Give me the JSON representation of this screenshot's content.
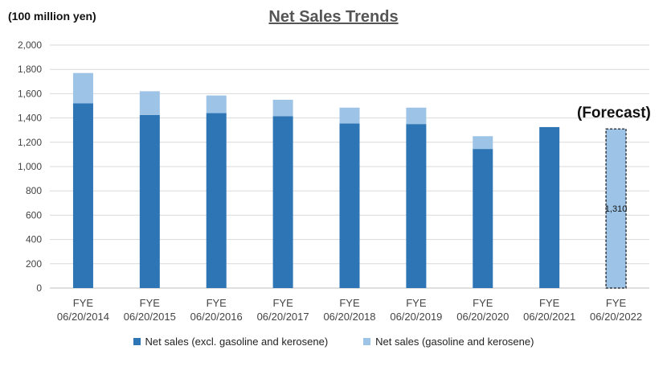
{
  "unit_label": "(100 million yen)",
  "forecast_label": "(Forecast)",
  "colors": {
    "excl": "#2E75B6",
    "gas": "#9DC3E6",
    "forecast": "#9DC3E6",
    "grid": "#d9d9d9",
    "axis_text": "#444444"
  },
  "chart_data": {
    "type": "bar",
    "title": "Net Sales Trends",
    "xlabel": "",
    "ylabel": "(100 million yen)",
    "ylim": [
      0,
      2000
    ],
    "yticks": [
      "0",
      "200",
      "400",
      "600",
      "800",
      "1,000",
      "1,200",
      "1,400",
      "1,600",
      "1,800",
      "2,000"
    ],
    "ytick_values": [
      0,
      200,
      400,
      600,
      800,
      1000,
      1200,
      1400,
      1600,
      1800,
      2000
    ],
    "grid": true,
    "legend_position": "bottom",
    "stacked": true,
    "categories": [
      [
        "FYE",
        "06/20/2014"
      ],
      [
        "FYE",
        "06/20/2015"
      ],
      [
        "FYE",
        "06/20/2016"
      ],
      [
        "FYE",
        "06/20/2017"
      ],
      [
        "FYE",
        "06/20/2018"
      ],
      [
        "FYE",
        "06/20/2019"
      ],
      [
        "FYE",
        "06/20/2020"
      ],
      [
        "FYE",
        "06/20/2021"
      ],
      [
        "FYE",
        "06/20/2022"
      ]
    ],
    "series": [
      {
        "name": "Net sales (excl. gasoline and kerosene)",
        "values": [
          1520,
          1425,
          1440,
          1415,
          1355,
          1350,
          1145,
          1325,
          null
        ]
      },
      {
        "name": "Net sales (gasoline and kerosene)",
        "values": [
          250,
          195,
          145,
          135,
          130,
          135,
          105,
          null,
          null
        ]
      }
    ],
    "forecast": {
      "category_index": 8,
      "value": 1310,
      "label": "1,310"
    }
  }
}
